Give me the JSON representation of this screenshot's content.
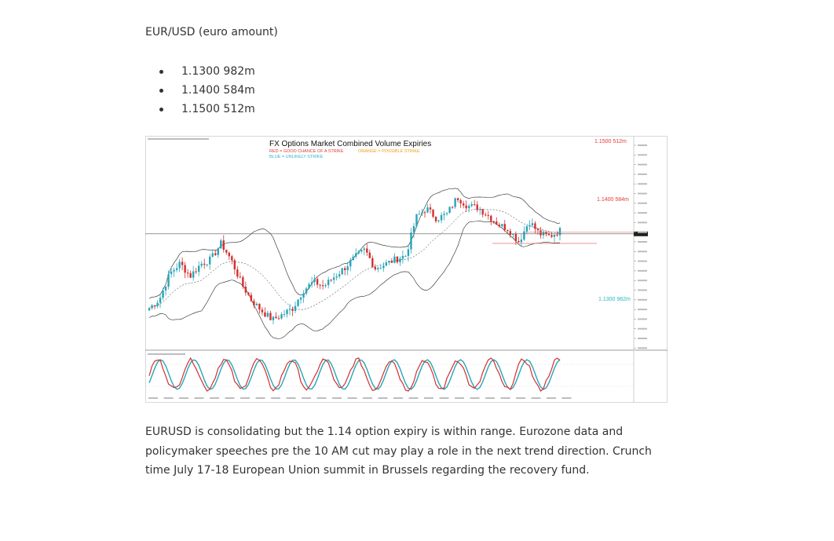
{
  "article": {
    "heading": "EUR/USD (euro amount)",
    "strikes": [
      "1.1300 982m",
      "1.1400 584m",
      "1.1500 512m"
    ],
    "paragraph": "EURUSD is consolidating but the 1.14 option expiry is within range. Eurozone data and policymaker speeches pre the 10 AM cut may play a role in the next trend direction. Crunch time July 17-18 European Union summit in Brussels regarding the recovery fund."
  },
  "chart_data": {
    "type": "candlestick",
    "title": "FX Options Market Combined Volume Expiries",
    "legend": {
      "red": "RED = GOOD CHANCE OF A STRIKE",
      "orange": "ORANGE = POSSIBLE STRIKE",
      "blue": "BLUE = UNLIKELY STRIKE"
    },
    "strike_labels": [
      {
        "text": "1.1500 512m",
        "price": 1.15,
        "color": "#e53935"
      },
      {
        "text": "1.1400 584m",
        "price": 1.14,
        "color": "#e53935"
      },
      {
        "text": "1.1300 982m",
        "price": 1.13,
        "color": "#29b6c9"
      }
    ],
    "current_price": 1.1405,
    "close_path": [
      1.1312,
      1.1323,
      1.1355,
      1.1368,
      1.1352,
      1.1367,
      1.1373,
      1.1393,
      1.1372,
      1.1342,
      1.1321,
      1.1308,
      1.1297,
      1.1304,
      1.1312,
      1.1334,
      1.1345,
      1.1339,
      1.1351,
      1.1362,
      1.1375,
      1.1385,
      1.1362,
      1.1367,
      1.1373,
      1.1378,
      1.1426,
      1.1437,
      1.1424,
      1.143,
      1.1451,
      1.144,
      1.1438,
      1.1428,
      1.1417,
      1.1411,
      1.1395,
      1.1421,
      1.1405,
      1.1402,
      1.1409
    ],
    "colors": {
      "bull": "#26a6b8",
      "bear": "#d32f2f",
      "stoch_main": "#d32f2f",
      "stoch_signal": "#26a6b8"
    }
  }
}
